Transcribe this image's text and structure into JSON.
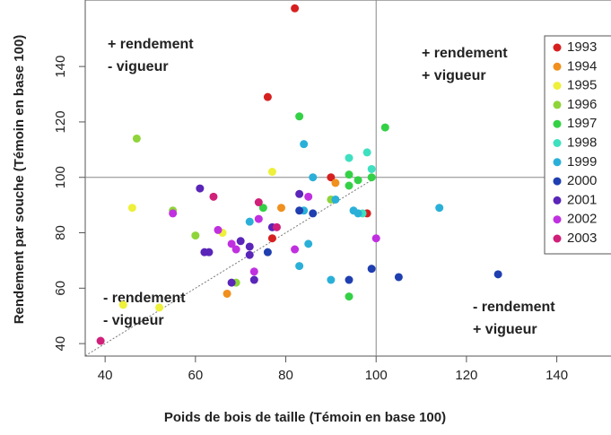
{
  "chart_data": {
    "type": "scatter",
    "x_label": "Poids de bois de taille (Témoin en base 100)",
    "y_label": "Rendement par souche (Témoin en base 100)",
    "xlim": [
      35.6,
      152
    ],
    "ylim": [
      35.5,
      164
    ],
    "xticks": [
      40,
      60,
      80,
      100,
      120,
      140
    ],
    "yticks": [
      40,
      60,
      80,
      100,
      120,
      140
    ],
    "reference_lines": {
      "x": 100,
      "y": 100
    },
    "diagonal": true,
    "annotations": [
      [
        "+ rendement",
        "- vigueur"
      ],
      [
        "+ rendement",
        "+ vigueur"
      ],
      [
        "- rendement",
        "- vigueur"
      ],
      [
        "- rendement",
        "+ vigueur"
      ]
    ],
    "legend": "top-right",
    "series": [
      {
        "name": "1993",
        "color": "#d62020",
        "x": [
          82,
          76,
          90,
          98,
          77
        ],
        "values": [
          161,
          129,
          100,
          87,
          78
        ]
      },
      {
        "name": "1994",
        "color": "#f0901e",
        "x": [
          91,
          79,
          67
        ],
        "values": [
          98,
          89,
          58
        ]
      },
      {
        "name": "1995",
        "color": "#eef03a",
        "x": [
          77,
          46,
          66,
          52,
          44
        ],
        "values": [
          102,
          89,
          80,
          53,
          54
        ]
      },
      {
        "name": "1996",
        "color": "#8fd43a",
        "x": [
          47,
          90,
          55,
          60,
          69
        ],
        "values": [
          114,
          92,
          88,
          79,
          62
        ]
      },
      {
        "name": "1997",
        "color": "#34d146",
        "x": [
          83,
          102,
          94,
          94,
          96,
          75,
          94,
          99
        ],
        "values": [
          122,
          118,
          101,
          97,
          99,
          89,
          57,
          100
        ]
      },
      {
        "name": "1998",
        "color": "#3ee0c0",
        "x": [
          98,
          94,
          99,
          97
        ],
        "values": [
          109,
          107,
          103,
          87
        ]
      },
      {
        "name": "1999",
        "color": "#2ab0d8",
        "x": [
          84,
          86,
          91,
          84,
          95,
          96,
          114,
          72,
          85,
          83,
          90
        ],
        "values": [
          112,
          100,
          92,
          88,
          88,
          87,
          89,
          84,
          76,
          68,
          63
        ]
      },
      {
        "name": "2000",
        "color": "#1f3fb0",
        "x": [
          83,
          86,
          76,
          99,
          105,
          127,
          94
        ],
        "values": [
          88,
          87,
          73,
          67,
          64,
          65,
          63
        ]
      },
      {
        "name": "2001",
        "color": "#5a25b8",
        "x": [
          61,
          83,
          77,
          70,
          72,
          62,
          63,
          72,
          73,
          68
        ],
        "values": [
          96,
          94,
          82,
          77,
          75,
          73,
          73,
          72,
          63,
          62
        ]
      },
      {
        "name": "2002",
        "color": "#c030e0",
        "x": [
          85,
          55,
          74,
          65,
          68,
          69,
          82,
          100,
          73
        ],
        "values": [
          93,
          87,
          85,
          81,
          76,
          74,
          74,
          78,
          66
        ]
      },
      {
        "name": "2003",
        "color": "#d0207a",
        "x": [
          64,
          74,
          78,
          39
        ],
        "values": [
          93,
          91,
          82,
          41
        ]
      }
    ]
  }
}
